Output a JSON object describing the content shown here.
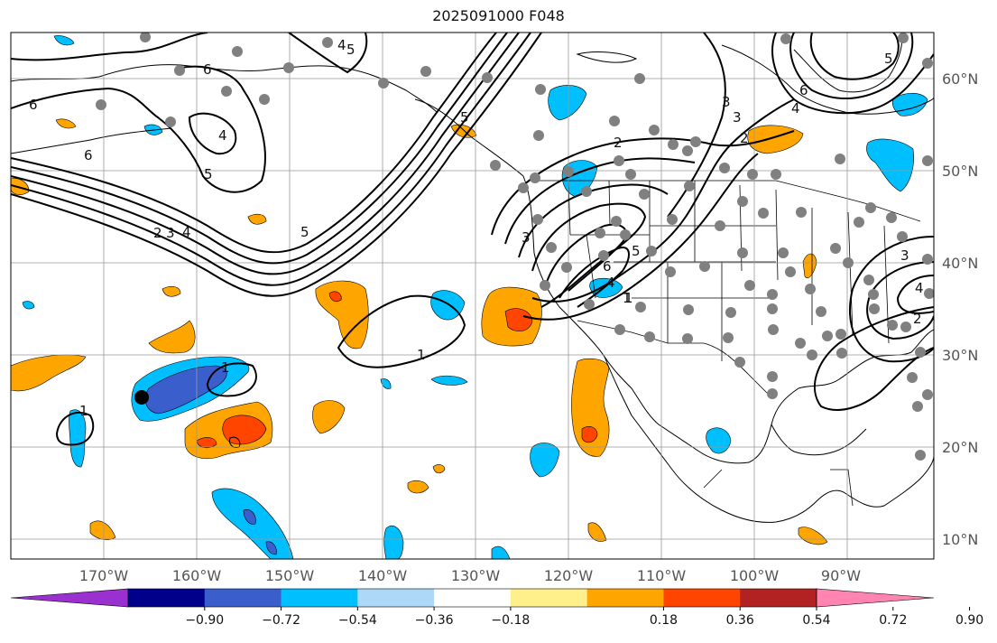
{
  "title": "2025091000 F048",
  "map": {
    "lon_labels": [
      "170°W",
      "160°W",
      "150°W",
      "140°W",
      "130°W",
      "120°W",
      "110°W",
      "100°W",
      "90°W"
    ],
    "lat_labels": [
      "60°N",
      "50°N",
      "40°N",
      "30°N",
      "20°N",
      "10°N"
    ],
    "contour_labels": [
      "6",
      "6",
      "6",
      "5",
      "4",
      "2",
      "3",
      "4",
      "5",
      "5",
      "4",
      "5",
      "1",
      "1",
      "1",
      "2",
      "3",
      "5",
      "6",
      "4",
      "3",
      "2",
      "1",
      "4",
      "3",
      "6",
      "5",
      "3",
      "2",
      "4",
      "1"
    ]
  },
  "colorbar": {
    "ticks": [
      "−0.90",
      "−0.72",
      "−0.54",
      "−0.36",
      "−0.18",
      "0.18",
      "0.36",
      "0.54",
      "0.72",
      "0.90"
    ],
    "colors": [
      "#9b30d0",
      "#00008b",
      "#3a5fcd",
      "#00bfff",
      "#add8f8",
      "#ffffff",
      "#fff08c",
      "#ffa500",
      "#ff4500",
      "#b22222",
      "#ff85b0"
    ]
  },
  "colors": {
    "blue_light": "#00bfff",
    "blue_mid": "#3a5fcd",
    "orange": "#ffa500",
    "red_orange": "#ff4500",
    "station_dot": "#808080"
  }
}
